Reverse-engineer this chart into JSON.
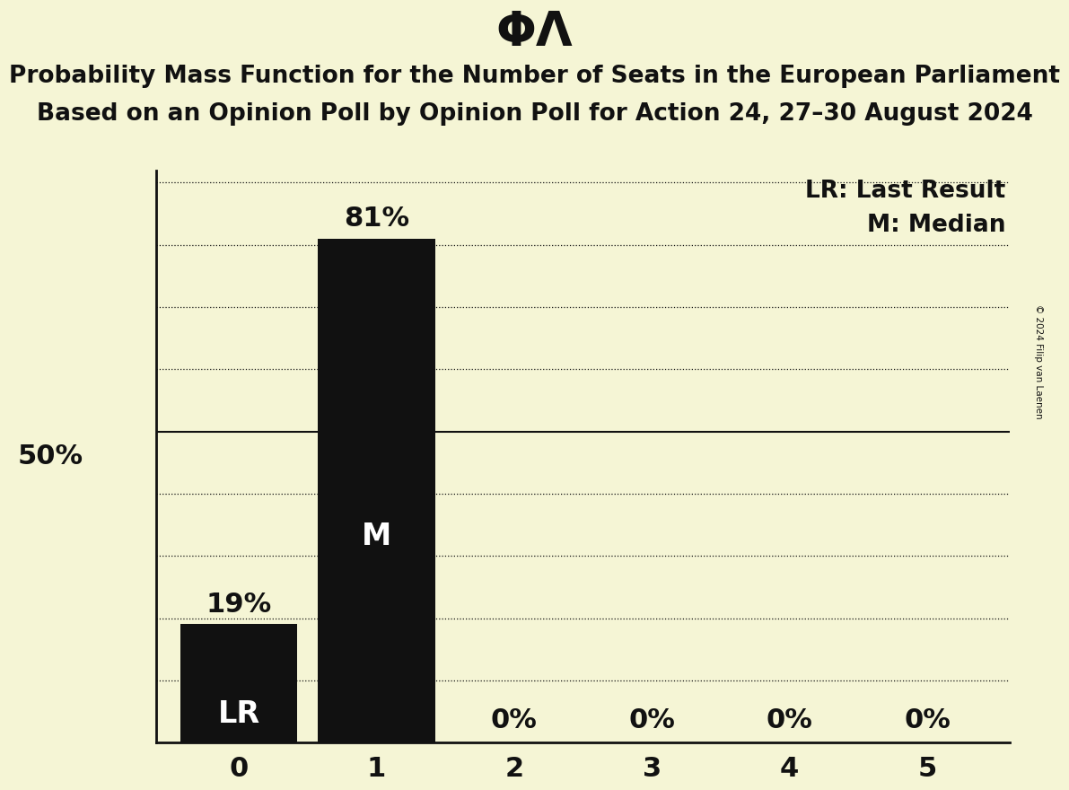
{
  "title_symbol": "ΦΛ",
  "subtitle_line1": "Probability Mass Function for the Number of Seats in the European Parliament",
  "subtitle_line2": "Based on an Opinion Poll by Opinion Poll for Action 24, 27–30 August 2024",
  "copyright": "© 2024 Filip van Laenen",
  "categories": [
    0,
    1,
    2,
    3,
    4,
    5
  ],
  "values": [
    0.19,
    0.81,
    0.0,
    0.0,
    0.0,
    0.0
  ],
  "bar_color": "#111111",
  "background_color": "#f5f5d5",
  "bar_labels": [
    "LR",
    "M",
    "",
    "",
    "",
    ""
  ],
  "bar_label_colors": [
    "white",
    "white",
    "#111111",
    "#111111",
    "#111111",
    "#111111"
  ],
  "pct_labels": [
    "19%",
    "81%",
    "0%",
    "0%",
    "0%",
    "0%"
  ],
  "pct_label_above_bar": [
    true,
    true,
    false,
    false,
    false,
    false
  ],
  "legend_lr": "LR: Last Result",
  "legend_m": "M: Median",
  "ylabel_50pct": "50%",
  "ylim": [
    0,
    0.92
  ],
  "xlabel_fontsize": 22,
  "ylabel_fontsize": 22,
  "title_fontsize": 38,
  "subtitle_fontsize": 19,
  "bar_label_fontsize": 22,
  "pct_label_fontsize": 22,
  "legend_fontsize": 19
}
